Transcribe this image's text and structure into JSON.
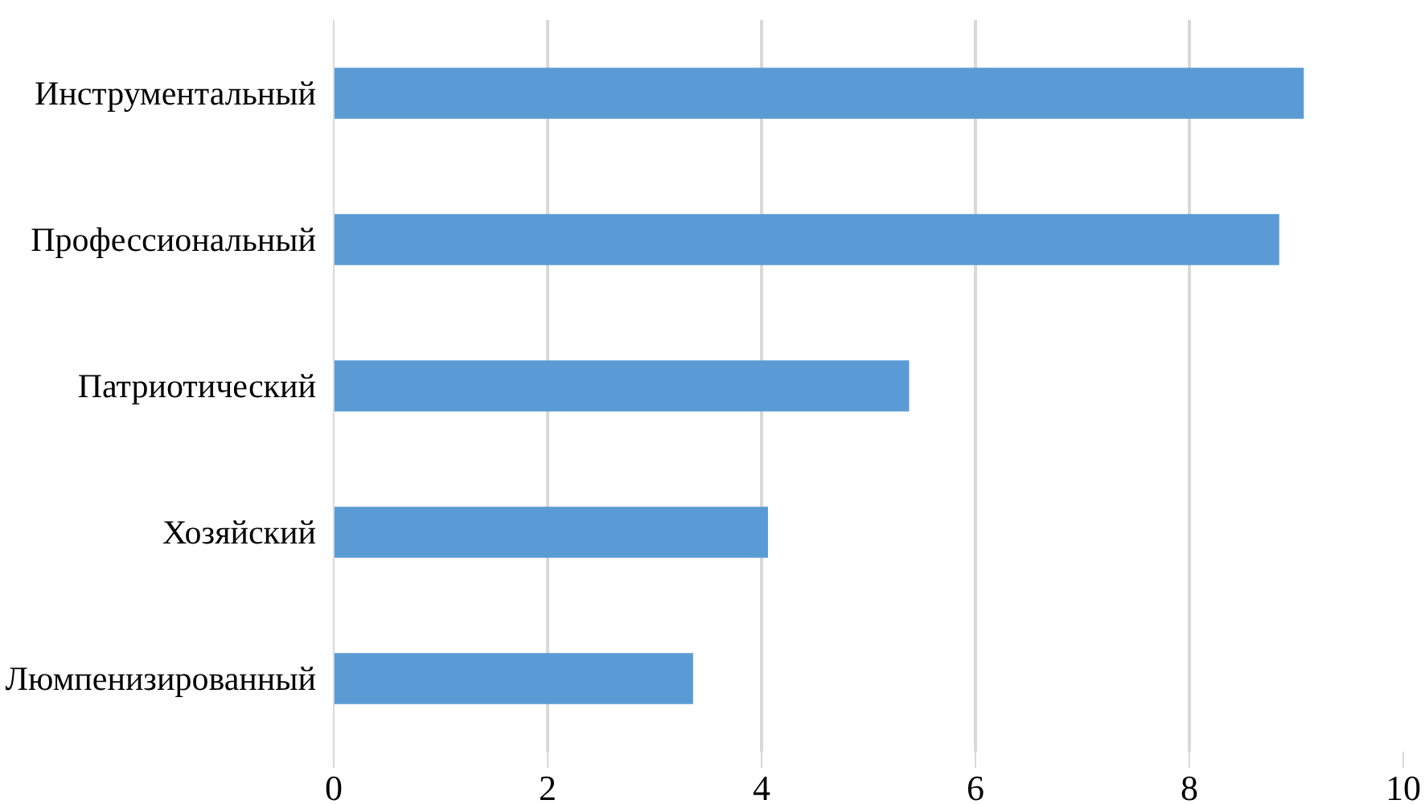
{
  "chart_data": {
    "type": "bar",
    "orientation": "horizontal",
    "categories": [
      "Инструментальный",
      "Профессиональный",
      "Патриотический",
      "Хозяйский",
      "Люмпенизированный"
    ],
    "values": [
      9.07,
      8.84,
      5.38,
      4.06,
      3.36
    ],
    "color": "#5b9bd5",
    "xlim": [
      0,
      10
    ],
    "xticks": [
      0,
      2,
      4,
      6,
      8,
      10
    ],
    "grid": "x"
  }
}
